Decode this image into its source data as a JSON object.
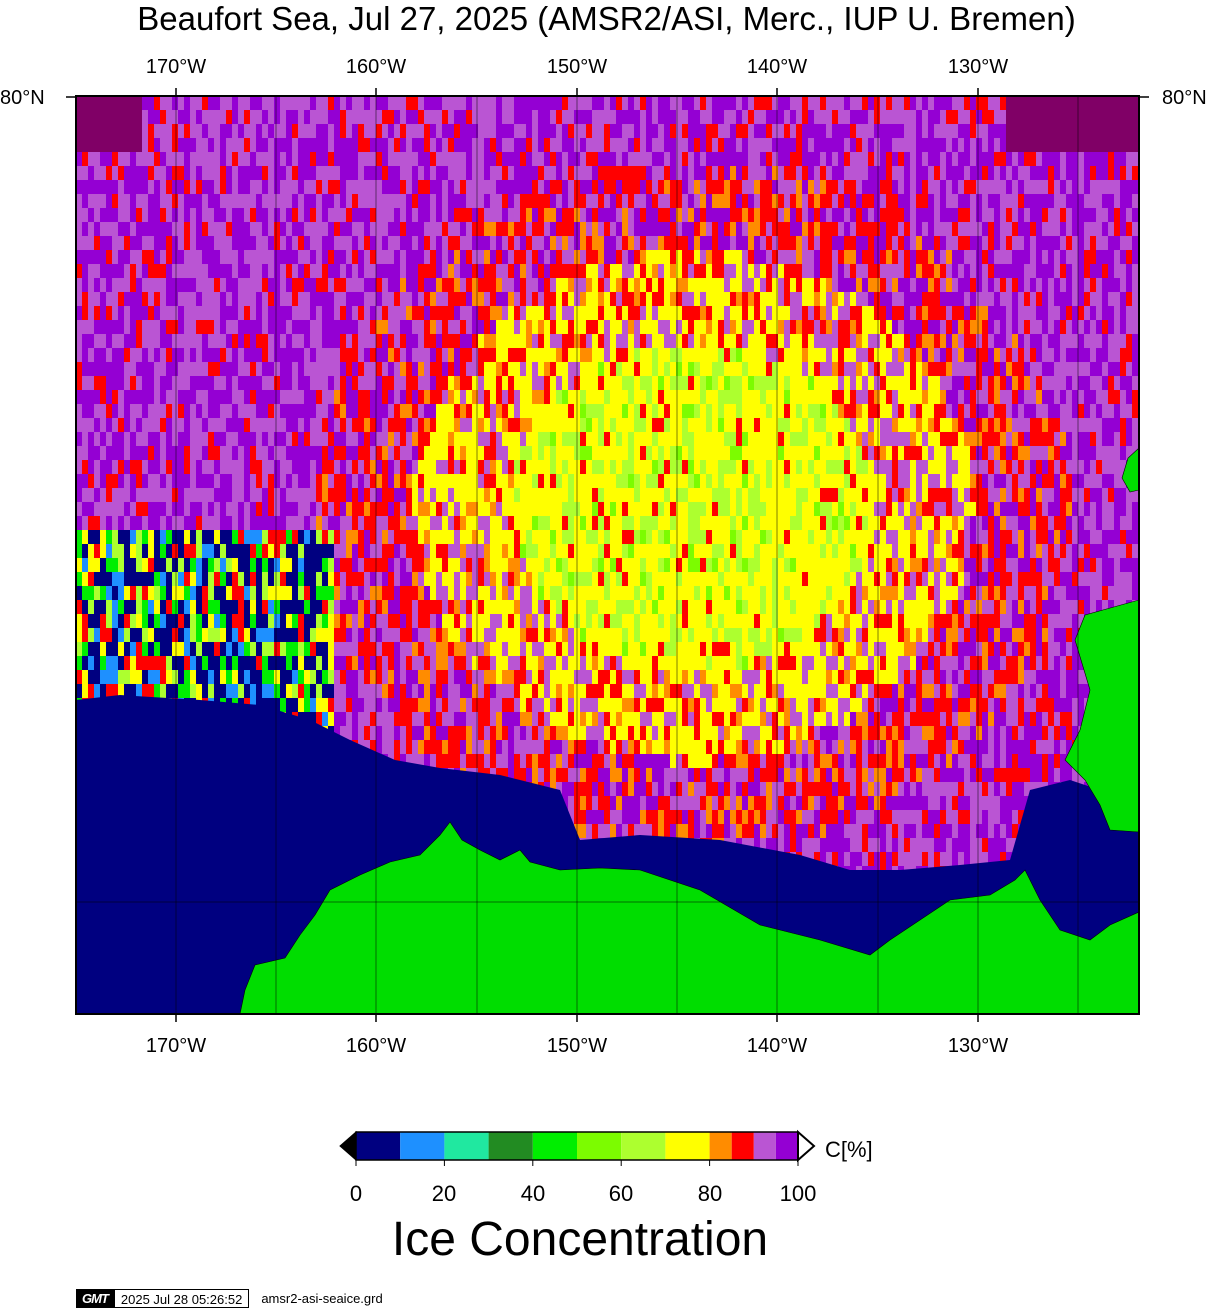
{
  "title": "Beaufort Sea, Jul 27, 2025 (AMSR2/ASI, Merc., IUP U. Bremen)",
  "map": {
    "lon_ticks": [
      "170°W",
      "160°W",
      "150°W",
      "140°W",
      "130°W"
    ],
    "lat_label_left": "80°N",
    "lat_label_right": "80°N",
    "lon_range": [
      -175,
      -122
    ],
    "land_color": "#00dd00",
    "ocean_color": "#000080",
    "coastline_color": "#000000"
  },
  "colorbar": {
    "title": "Ice Concentration",
    "unit": "C[%]",
    "ticks": [
      "0",
      "20",
      "40",
      "60",
      "80",
      "100"
    ],
    "classes": [
      {
        "range": "0-10",
        "color": "#000080"
      },
      {
        "range": "10-20",
        "color": "#1e90ff"
      },
      {
        "range": "20-30",
        "color": "#20e8a0"
      },
      {
        "range": "30-40",
        "color": "#228b22"
      },
      {
        "range": "40-50",
        "color": "#00ee00"
      },
      {
        "range": "50-60",
        "color": "#7cfc00"
      },
      {
        "range": "60-70",
        "color": "#adff2f"
      },
      {
        "range": "70-80",
        "color": "#ffff00"
      },
      {
        "range": "80-85",
        "color": "#ff8c00"
      },
      {
        "range": "85-90",
        "color": "#ff0000"
      },
      {
        "range": "90-95",
        "color": "#ba55d3"
      },
      {
        "range": "95-100",
        "color": "#9400d3"
      }
    ],
    "below_color": "#000000",
    "above_color": "#ffffff"
  },
  "footer": {
    "logo": "GMT",
    "timestamp": "2025 Jul 28 05:26:52",
    "filename": "amsr2-asi-seaice.grd"
  }
}
